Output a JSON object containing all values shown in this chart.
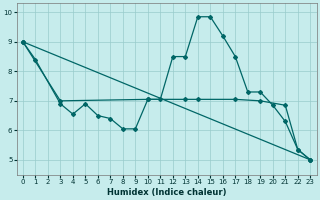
{
  "xlabel": "Humidex (Indice chaleur)",
  "xlim": [
    -0.5,
    23.5
  ],
  "ylim": [
    4.5,
    10.3
  ],
  "xticks": [
    0,
    1,
    2,
    3,
    4,
    5,
    6,
    7,
    8,
    9,
    10,
    11,
    12,
    13,
    14,
    15,
    16,
    17,
    18,
    19,
    20,
    21,
    22,
    23
  ],
  "yticks": [
    5,
    6,
    7,
    8,
    9,
    10
  ],
  "background_color": "#c6ecec",
  "grid_color": "#99cccc",
  "line_color": "#006666",
  "line1_x": [
    0,
    1,
    3,
    4,
    5,
    6,
    7,
    8,
    9,
    10,
    11,
    12,
    13,
    14,
    15,
    16,
    17,
    18,
    19,
    20,
    21,
    22,
    23
  ],
  "line1_y": [
    9.0,
    8.4,
    6.9,
    6.55,
    6.9,
    6.5,
    6.4,
    6.05,
    6.05,
    7.05,
    7.05,
    8.5,
    8.5,
    9.85,
    9.85,
    9.2,
    8.5,
    7.3,
    7.3,
    6.85,
    6.3,
    5.35,
    5.0
  ],
  "line2_x": [
    0,
    3,
    10,
    13,
    14,
    17,
    19,
    21,
    22,
    23
  ],
  "line2_y": [
    9.0,
    7.0,
    7.05,
    7.05,
    7.05,
    7.05,
    7.0,
    6.85,
    5.35,
    5.0
  ],
  "line3_x": [
    0,
    23
  ],
  "line3_y": [
    9.0,
    5.0
  ],
  "lw": 0.9,
  "ms": 2.0,
  "tick_labelsize": 5.0,
  "xlabel_fontsize": 6.0
}
